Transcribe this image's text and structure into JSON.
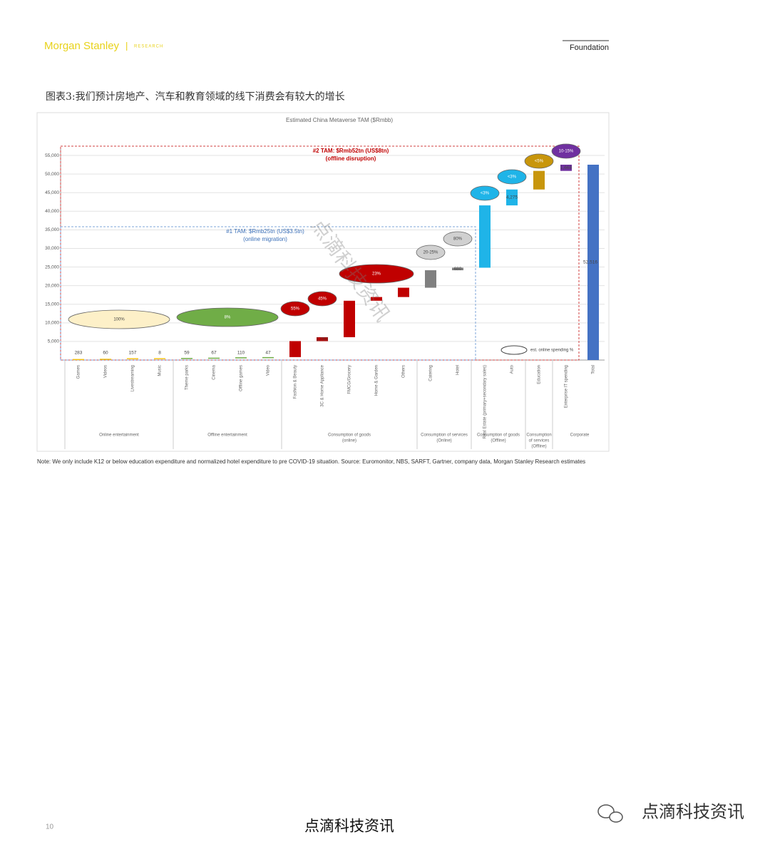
{
  "header": {
    "brand": "Morgan Stanley",
    "division": "RESEARCH",
    "series": "Foundation"
  },
  "caption": "图表3:我们预计房地产、汽车和教育领域的线下消费会有较大的增长",
  "chart_data": {
    "type": "waterfall",
    "title": "Estimated China Metaverse TAM ($Rmbb)",
    "categories": [
      "Games",
      "Videos",
      "Livestreaming",
      "Music",
      "Theme parks",
      "Cinema",
      "Offline games",
      "Video",
      "Fashion & Beauty",
      "3C & Home Appliance",
      "FMCG/Grocery",
      "Home & Garden",
      "Others",
      "Catering",
      "Hotel",
      "Real Estate (primary+secondary sales)",
      "Auto",
      "Education",
      "Enterprise IT spending",
      "Total"
    ],
    "values": [
      283,
      60,
      157,
      8,
      59,
      67,
      110,
      47,
      4300,
      1050,
      9800,
      1000,
      2500,
      4700,
      680,
      16752,
      4275,
      5000,
      1668,
      52516
    ],
    "value_labels": [
      "283",
      "60",
      "157",
      "8",
      "59",
      "67",
      "110",
      "47",
      null,
      "1,050",
      null,
      null,
      null,
      null,
      "680",
      null,
      "4,275",
      null,
      "1,668",
      "52,516"
    ],
    "colors": [
      "#f5c518",
      "#f5c518",
      "#f5c518",
      "#f5c518",
      "#70ad47",
      "#70ad47",
      "#70ad47",
      "#70ad47",
      "#c00000",
      "#c00000",
      "#c00000",
      "#c00000",
      "#c00000",
      "#808080",
      "#808080",
      "#1fb4e8",
      "#1fb4e8",
      "#c8960c",
      "#7030a0",
      "#4472c4"
    ],
    "total_index": 19,
    "ylim": [
      0,
      57000
    ],
    "yticks": [
      {
        "value": 5000,
        "label": "5,000"
      },
      {
        "value": 10000,
        "label": "10,000"
      },
      {
        "value": 15000,
        "label": "15,000"
      },
      {
        "value": 20000,
        "label": "20,000"
      },
      {
        "value": 25000,
        "label": "25,000"
      },
      {
        "value": 30000,
        "label": "30,000"
      },
      {
        "value": 35000,
        "label": "35,000"
      },
      {
        "value": 40000,
        "label": "40,000"
      },
      {
        "value": 45000,
        "label": "45,000"
      },
      {
        "value": 50000,
        "label": "50,000"
      },
      {
        "value": 55000,
        "label": "55,000"
      }
    ],
    "grid": true,
    "groups": [
      {
        "lines": [
          "Online entertainment"
        ],
        "from": 0,
        "to": 3
      },
      {
        "lines": [
          "Offline entertainment"
        ],
        "from": 4,
        "to": 7
      },
      {
        "lines": [
          "Consumption of goods",
          "(online)"
        ],
        "from": 8,
        "to": 12
      },
      {
        "lines": [
          "Consumption of services",
          "(Online)"
        ],
        "from": 13,
        "to": 14
      },
      {
        "lines": [
          "Consumption of goods",
          "(Offline)"
        ],
        "from": 15,
        "to": 16
      },
      {
        "lines": [
          "Consumption",
          "of services",
          "(Offline)"
        ],
        "from": 17,
        "to": 17
      },
      {
        "lines": [
          "Corporate"
        ],
        "from": 18,
        "to": 19
      }
    ],
    "online_share": [
      {
        "label": "100%",
        "from": 0,
        "to": 3,
        "color": "#fdf0c8"
      },
      {
        "label": "8%",
        "from": 4,
        "to": 7,
        "color": "#70ad47"
      },
      {
        "label": "55%",
        "from": 8,
        "to": 8,
        "color": "#c00000"
      },
      {
        "label": "45%",
        "from": 9,
        "to": 9,
        "color": "#c00000"
      },
      {
        "label": "23%",
        "from": 10,
        "to": 12,
        "color": "#c00000"
      },
      {
        "label": "20-25%",
        "from": 13,
        "to": 13,
        "color": "#d0d0d0"
      },
      {
        "label": "80%",
        "from": 14,
        "to": 14,
        "color": "#d0d0d0"
      },
      {
        "label": "<3%",
        "from": 15,
        "to": 15,
        "color": "#1fb4e8"
      },
      {
        "label": "<3%",
        "from": 16,
        "to": 16,
        "color": "#1fb4e8"
      },
      {
        "label": "<5%",
        "from": 17,
        "to": 17,
        "color": "#c8960c"
      },
      {
        "label": "10-15%",
        "from": 18,
        "to": 18,
        "color": "#7030a0"
      }
    ],
    "legend": "est. online spending %",
    "tam1": [
      "#1 TAM: $Rmb25tn (US$3.5tn)",
      "(online migration)"
    ],
    "tam2": [
      "#2 TAM: $Rmb52tn (US$8tn)",
      "(offline disruption)"
    ]
  },
  "note": "Note: We only include K12 or below education expenditure and normalized hotel expenditure to pre COVID-19 situation. Source: Euromonitor, NBS, SARFT, Gartner, company data, Morgan Stanley Research estimates",
  "page_number": "10",
  "footer": "点滴科技资讯",
  "watermark": "点滴科技资讯"
}
